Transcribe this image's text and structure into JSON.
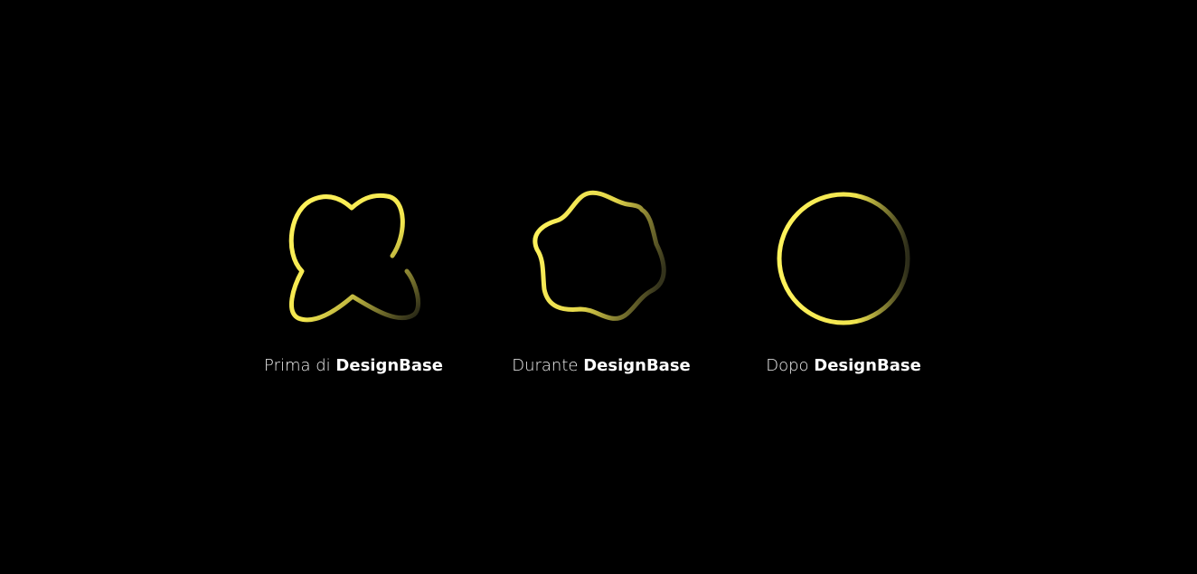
{
  "colors": {
    "background": "#000000",
    "stroke_bright": "#fff15a",
    "stroke_mid": "#d4c842",
    "stroke_dark": "#2a2a1a",
    "text": "#ffffff"
  },
  "items": [
    {
      "prefix": "Prima di",
      "brand": "DesignBase"
    },
    {
      "prefix": "Durante",
      "brand": "DesignBase"
    },
    {
      "prefix": "Dopo",
      "brand": "DesignBase"
    }
  ]
}
